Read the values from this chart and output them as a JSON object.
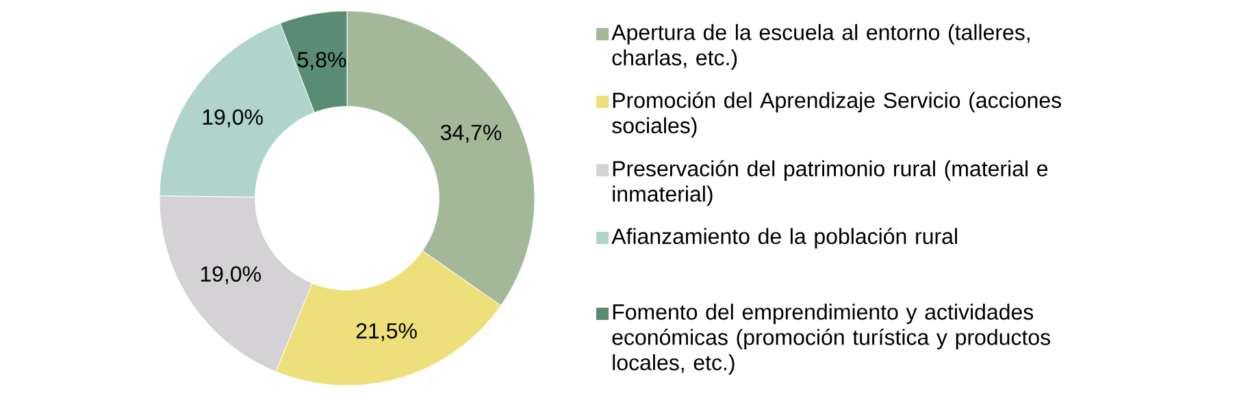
{
  "chart_data": {
    "type": "donut",
    "categories": [
      "Apertura de la escuela al entorno (talleres, charlas, etc.)",
      "Promoción del Aprendizaje Servicio (acciones sociales)",
      "Preservación del patrimonio rural (material e inmaterial)",
      "Afianzamiento de la población rural",
      "Fomento del emprendimiento y actividades económicas (promoción turística y productos locales, etc.)"
    ],
    "values": [
      34.7,
      21.5,
      19.0,
      19.0,
      5.8
    ],
    "value_labels": [
      "34,7%",
      "21,5%",
      "19,0%",
      "19,0%",
      "5,8%"
    ],
    "colors": [
      "#a3b899",
      "#ede07a",
      "#d4d2d4",
      "#b0d4cc",
      "#5a8c74"
    ],
    "legend": "right"
  }
}
